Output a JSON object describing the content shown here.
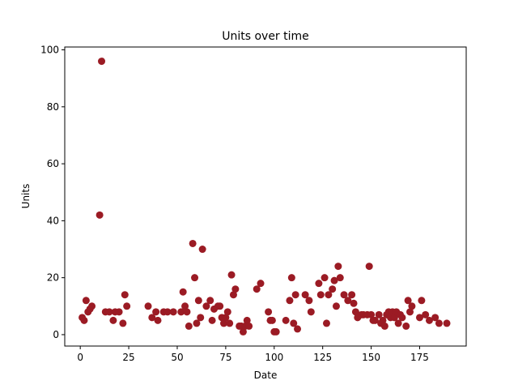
{
  "chart_data": {
    "type": "scatter",
    "title": "Units over time",
    "xlabel": "Date",
    "ylabel": "Units",
    "xlim": [
      -8,
      199
    ],
    "ylim": [
      -4,
      101
    ],
    "xticks": [
      0,
      25,
      50,
      75,
      100,
      125,
      150,
      175
    ],
    "yticks": [
      0,
      20,
      40,
      60,
      80,
      100
    ],
    "grid": false,
    "marker_color": "#9b1b24",
    "points": [
      [
        1,
        6
      ],
      [
        2,
        5
      ],
      [
        3,
        12
      ],
      [
        4,
        8
      ],
      [
        5,
        9
      ],
      [
        6,
        10
      ],
      [
        10,
        42
      ],
      [
        11,
        96
      ],
      [
        13,
        8
      ],
      [
        15,
        8
      ],
      [
        17,
        5
      ],
      [
        18,
        8
      ],
      [
        20,
        8
      ],
      [
        22,
        4
      ],
      [
        23,
        14
      ],
      [
        24,
        10
      ],
      [
        35,
        10
      ],
      [
        37,
        6
      ],
      [
        39,
        8
      ],
      [
        40,
        5
      ],
      [
        43,
        8
      ],
      [
        45,
        8
      ],
      [
        48,
        8
      ],
      [
        52,
        8
      ],
      [
        53,
        15
      ],
      [
        54,
        10
      ],
      [
        55,
        8
      ],
      [
        56,
        3
      ],
      [
        58,
        32
      ],
      [
        59,
        20
      ],
      [
        60,
        4
      ],
      [
        61,
        12
      ],
      [
        62,
        6
      ],
      [
        63,
        30
      ],
      [
        65,
        10
      ],
      [
        67,
        12
      ],
      [
        68,
        5
      ],
      [
        69,
        9
      ],
      [
        71,
        10
      ],
      [
        72,
        10
      ],
      [
        73,
        6
      ],
      [
        74,
        4
      ],
      [
        75,
        6
      ],
      [
        76,
        8
      ],
      [
        77,
        4
      ],
      [
        78,
        21
      ],
      [
        79,
        14
      ],
      [
        80,
        16
      ],
      [
        82,
        3
      ],
      [
        83,
        3
      ],
      [
        84,
        1
      ],
      [
        85,
        3
      ],
      [
        86,
        5
      ],
      [
        87,
        3
      ],
      [
        91,
        16
      ],
      [
        93,
        18
      ],
      [
        97,
        8
      ],
      [
        98,
        5
      ],
      [
        99,
        5
      ],
      [
        100,
        1
      ],
      [
        101,
        1
      ],
      [
        106,
        5
      ],
      [
        108,
        12
      ],
      [
        109,
        20
      ],
      [
        110,
        4
      ],
      [
        111,
        14
      ],
      [
        112,
        2
      ],
      [
        116,
        14
      ],
      [
        118,
        12
      ],
      [
        119,
        8
      ],
      [
        123,
        18
      ],
      [
        124,
        14
      ],
      [
        126,
        20
      ],
      [
        127,
        4
      ],
      [
        128,
        14
      ],
      [
        130,
        16
      ],
      [
        131,
        19
      ],
      [
        132,
        10
      ],
      [
        133,
        24
      ],
      [
        134,
        20
      ],
      [
        136,
        14
      ],
      [
        138,
        12
      ],
      [
        140,
        14
      ],
      [
        141,
        11
      ],
      [
        142,
        8
      ],
      [
        143,
        6
      ],
      [
        145,
        7
      ],
      [
        146,
        7
      ],
      [
        148,
        7
      ],
      [
        149,
        24
      ],
      [
        150,
        7
      ],
      [
        151,
        5
      ],
      [
        152,
        5
      ],
      [
        154,
        7
      ],
      [
        155,
        4
      ],
      [
        156,
        5
      ],
      [
        157,
        3
      ],
      [
        158,
        7
      ],
      [
        159,
        8
      ],
      [
        160,
        6
      ],
      [
        161,
        8
      ],
      [
        162,
        6
      ],
      [
        163,
        8
      ],
      [
        164,
        4
      ],
      [
        165,
        7
      ],
      [
        166,
        6
      ],
      [
        168,
        3
      ],
      [
        169,
        12
      ],
      [
        170,
        8
      ],
      [
        171,
        10
      ],
      [
        175,
        6
      ],
      [
        176,
        12
      ],
      [
        178,
        7
      ],
      [
        180,
        5
      ],
      [
        183,
        6
      ],
      [
        185,
        4
      ],
      [
        189,
        4
      ]
    ]
  }
}
